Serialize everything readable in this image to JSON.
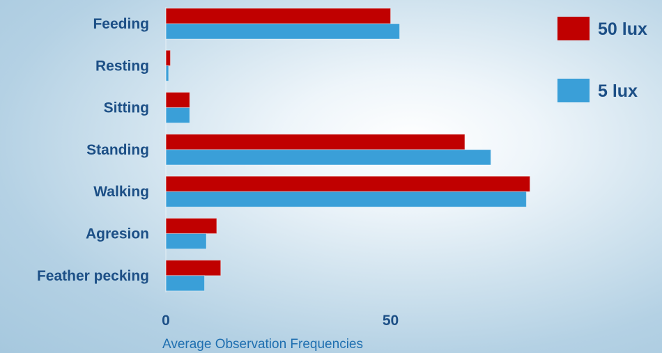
{
  "chart_data": {
    "type": "bar",
    "orientation": "horizontal",
    "categories": [
      "Feeding",
      "Resting",
      "Sitting",
      "Standing",
      "Walking",
      "Agresion",
      "Feather pecking"
    ],
    "series": [
      {
        "name": "50 lux",
        "color": "#c00000",
        "values": [
          50,
          1,
          5.3,
          66.5,
          81,
          11.3,
          12.2
        ]
      },
      {
        "name": "5 lux",
        "color": "#3a9fd8",
        "values": [
          52,
          0.6,
          5.3,
          72.3,
          80.2,
          9,
          8.6
        ]
      }
    ],
    "xticks": [
      0,
      50
    ],
    "xlabel": "Average Observation Frequencies",
    "ylabel": "",
    "title": "",
    "xlim": [
      0,
      82
    ],
    "legend": "top-right",
    "grid": false
  }
}
